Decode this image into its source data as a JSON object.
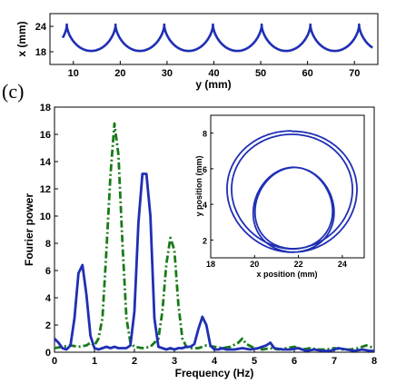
{
  "panel_label": "(c)",
  "colors": {
    "solid": "#1f2fb4",
    "dashdot": "#1a7a1a",
    "axis": "#000000"
  },
  "chart_data": [
    {
      "id": "trajectory",
      "type": "line",
      "xlabel": "y (mm)",
      "ylabel": "x (mm)",
      "xlim": [
        5,
        75
      ],
      "ylim": [
        15,
        27
      ],
      "x_ticks": [
        "10",
        "20",
        "30",
        "40",
        "50",
        "60",
        "70"
      ],
      "y_ticks": [
        "18",
        "24"
      ],
      "series": [
        {
          "style": "solid",
          "shape": {
            "start_x": 6,
            "end_x": 75,
            "mean_y": 21.3,
            "amplitude": 3.1,
            "wavelength": 10.4,
            "loop_radius": 1.9,
            "loop_height": 2.5
          }
        }
      ]
    },
    {
      "id": "fourier",
      "type": "line",
      "xlabel": "Frequency (Hz)",
      "ylabel": "Fourier power",
      "xlim": [
        0,
        8
      ],
      "ylim": [
        0,
        18
      ],
      "x_ticks": [
        "0",
        "1",
        "2",
        "3",
        "4",
        "5",
        "6",
        "7",
        "8"
      ],
      "y_ticks": [
        "0",
        "2",
        "4",
        "6",
        "8",
        "10",
        "12",
        "14",
        "16",
        "18"
      ],
      "series": [
        {
          "style": "solid",
          "x": [
            0,
            0.1,
            0.2,
            0.3,
            0.4,
            0.5,
            0.6,
            0.7,
            0.8,
            0.9,
            1.0,
            1.1,
            1.2,
            1.3,
            1.4,
            1.5,
            1.6,
            1.7,
            1.8,
            1.9,
            2.0,
            2.1,
            2.2,
            2.3,
            2.4,
            2.5,
            2.6,
            2.7,
            2.8,
            2.9,
            3.0,
            3.1,
            3.2,
            3.3,
            3.4,
            3.5,
            3.6,
            3.7,
            3.8,
            3.9,
            4.0,
            4.1,
            4.2,
            4.3,
            4.5,
            4.7,
            4.9,
            5.1,
            5.3,
            5.4,
            5.5,
            5.7,
            5.9,
            6.1,
            6.3,
            6.5,
            6.7,
            6.9,
            7.1,
            7.3,
            7.5,
            7.7,
            7.9,
            8.0
          ],
          "y": [
            1.0,
            0.7,
            0.3,
            0.2,
            0.5,
            2.5,
            5.8,
            6.4,
            4.2,
            1.2,
            0.3,
            0.2,
            0.3,
            0.4,
            0.3,
            0.4,
            0.3,
            0.3,
            0.3,
            0.5,
            3.0,
            9.5,
            13.1,
            13.1,
            10.0,
            2.5,
            0.4,
            0.3,
            0.2,
            0.3,
            0.2,
            0.3,
            0.3,
            0.4,
            0.4,
            0.6,
            1.7,
            2.6,
            2.0,
            0.5,
            0.2,
            0.2,
            0.3,
            0.2,
            0.2,
            0.3,
            0.2,
            0.3,
            0.5,
            0.7,
            0.3,
            0.2,
            0.2,
            0.3,
            0.1,
            0.2,
            0.1,
            0.1,
            0.3,
            0.2,
            0.1,
            0.2,
            0.1,
            0.1
          ]
        },
        {
          "style": "dashdot",
          "x": [
            0,
            0.2,
            0.4,
            0.6,
            0.8,
            0.9,
            1.0,
            1.1,
            1.2,
            1.3,
            1.4,
            1.5,
            1.6,
            1.7,
            1.8,
            1.9,
            2.0,
            2.2,
            2.4,
            2.6,
            2.7,
            2.8,
            2.9,
            3.0,
            3.1,
            3.2,
            3.3,
            3.4,
            3.6,
            3.8,
            4.0,
            4.2,
            4.4,
            4.6,
            4.7,
            4.8,
            5.0,
            5.2,
            5.4,
            5.6,
            5.8,
            6.0,
            6.2,
            6.4,
            6.6,
            6.8,
            7.0,
            7.2,
            7.4,
            7.6,
            7.8,
            8.0
          ],
          "y": [
            0.3,
            0.4,
            0.5,
            0.4,
            0.5,
            0.7,
            0.5,
            1.0,
            2.5,
            7.5,
            13.0,
            16.8,
            14.5,
            8.0,
            2.5,
            0.7,
            0.4,
            0.3,
            0.4,
            1.0,
            3.0,
            6.5,
            8.4,
            7.5,
            3.5,
            1.0,
            0.4,
            0.3,
            0.3,
            0.5,
            0.4,
            0.3,
            0.4,
            0.7,
            1.0,
            0.6,
            0.3,
            0.2,
            0.3,
            0.2,
            0.3,
            0.4,
            0.2,
            0.3,
            0.2,
            0.2,
            0.3,
            0.2,
            0.2,
            0.3,
            0.5,
            0.3
          ]
        }
      ]
    },
    {
      "id": "inset",
      "type": "line",
      "xlabel": "x position (mm)",
      "ylabel": "y position (mm)",
      "xlim": [
        18,
        25
      ],
      "ylim": [
        1,
        9
      ],
      "x_ticks": [
        "18",
        "20",
        "22",
        "24"
      ],
      "y_ticks": [
        "2",
        "4",
        "6",
        "8"
      ],
      "series": [
        {
          "style": "solid",
          "shape": {
            "big_loop_center": [
              21.7,
              4.7
            ],
            "big_loop_radius": [
              3.1,
              3.4
            ],
            "small_loop_center": [
              21.8,
              3.8
            ],
            "small_loop_radius": [
              1.5,
              2.2
            ],
            "turns": 4
          }
        }
      ]
    }
  ]
}
